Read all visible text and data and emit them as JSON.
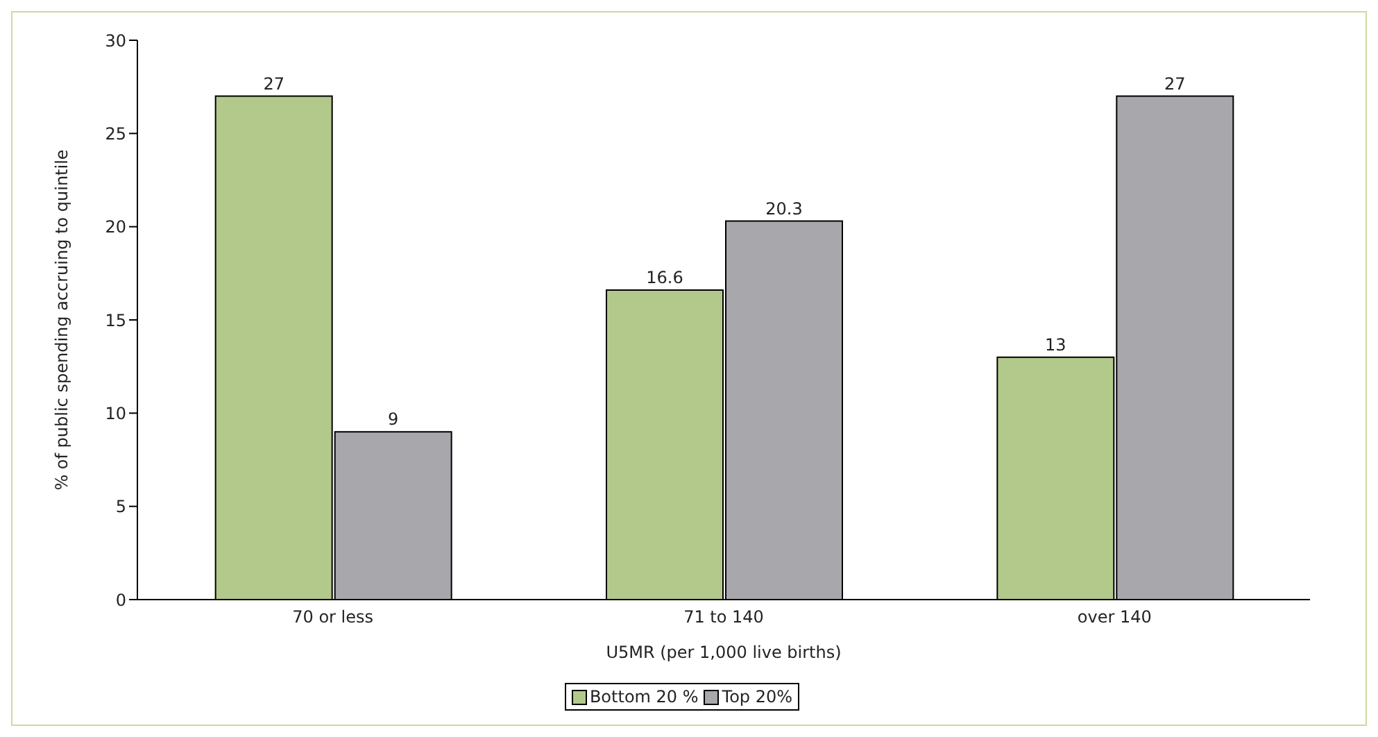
{
  "chart_data": {
    "type": "bar",
    "xlabel": "U5MR (per 1,000 live births)",
    "ylabel": "% of public spending accruing to quintile",
    "categories": [
      "70 or less",
      "71 to 140",
      "over 140"
    ],
    "series": [
      {
        "name": "Bottom 20 %",
        "color": "#b3c98b",
        "values": [
          27,
          16.6,
          13
        ]
      },
      {
        "name": "Top 20%",
        "color": "#a7a7ac",
        "values": [
          9,
          20.3,
          27
        ]
      }
    ],
    "ylim": [
      0,
      30
    ],
    "yticks": [
      0,
      5,
      10,
      15,
      20,
      25,
      30
    ],
    "grid": false,
    "legend": "bottom",
    "data_labels": true
  }
}
